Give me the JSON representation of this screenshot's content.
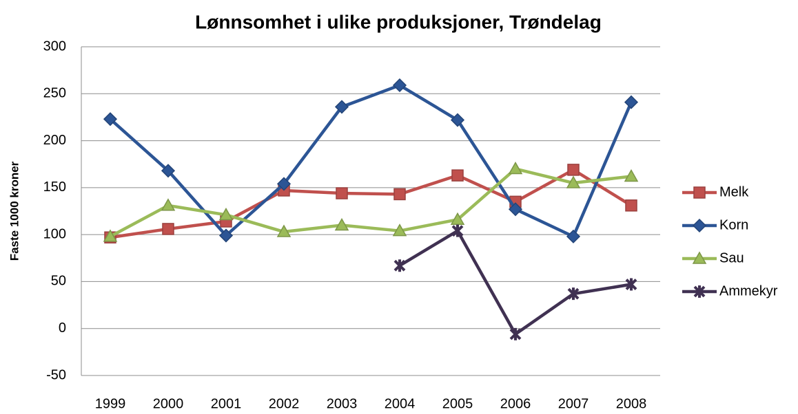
{
  "chart_data": {
    "type": "line",
    "title": "Lønnsomhet i ulike produksjoner, Trøndelag",
    "y_label": "Faste 1000 kroner",
    "categories": [
      "1999",
      "2000",
      "2001",
      "2002",
      "2003",
      "2004",
      "2005",
      "2006",
      "2007",
      "2008"
    ],
    "series": [
      {
        "name": "Melk",
        "color": "#c0504d",
        "values": [
          97,
          106,
          114,
          147,
          144,
          143,
          163,
          135,
          169,
          131
        ]
      },
      {
        "name": "Korn",
        "color": "#2c5595",
        "values": [
          223,
          168,
          99,
          154,
          236,
          259,
          222,
          127,
          98,
          241
        ]
      },
      {
        "name": "Sau",
        "color": "#9bbb59",
        "values": [
          98,
          131,
          121,
          103,
          110,
          104,
          116,
          170,
          155,
          162
        ]
      },
      {
        "name": "Ammekyr",
        "color": "#403152",
        "values": [
          null,
          null,
          null,
          null,
          null,
          67,
          104,
          -6,
          37,
          47
        ]
      }
    ],
    "ylim": [
      -50,
      300
    ],
    "yticks": [
      -50,
      0,
      50,
      100,
      150,
      200,
      250,
      300
    ],
    "grid": true,
    "legend": "right"
  }
}
